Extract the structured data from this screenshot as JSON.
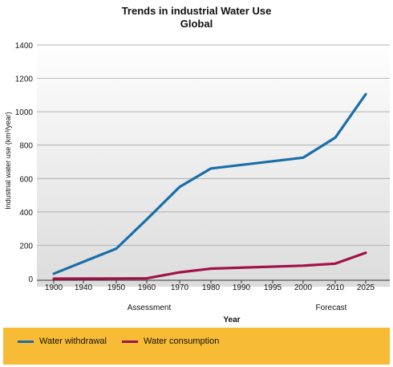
{
  "chart_data": {
    "type": "line",
    "title": "Trends in industrial Water Use",
    "subtitle": "Global",
    "xlabel": "Year",
    "ylabel": "Industrial water use (km³/year)",
    "x_ticks": [
      "1900",
      "1940",
      "1950",
      "1960",
      "1970",
      "1980",
      "1990",
      "1995",
      "2000",
      "2010",
      "2025"
    ],
    "x_group_labels": [
      "Assessment",
      "Forecast"
    ],
    "ylim": [
      0,
      1400
    ],
    "y_ticks": [
      "0",
      "200",
      "400",
      "600",
      "800",
      "1000",
      "1200",
      "1400"
    ],
    "grid": true,
    "legend_position": "bottom",
    "series": [
      {
        "name": "Water withdrawal",
        "color": "#1a6fa8",
        "x": [
          1900,
          1950,
          1960,
          1970,
          1980,
          2000,
          2010,
          2025
        ],
        "y": [
          30,
          180,
          355,
          550,
          660,
          725,
          845,
          1105
        ]
      },
      {
        "name": "Water consumption",
        "color": "#a0124a",
        "x": [
          1900,
          1950,
          1960,
          1970,
          1980,
          2000,
          2010,
          2025
        ],
        "y": [
          0,
          1,
          2,
          38,
          60,
          78,
          90,
          155
        ]
      }
    ]
  }
}
